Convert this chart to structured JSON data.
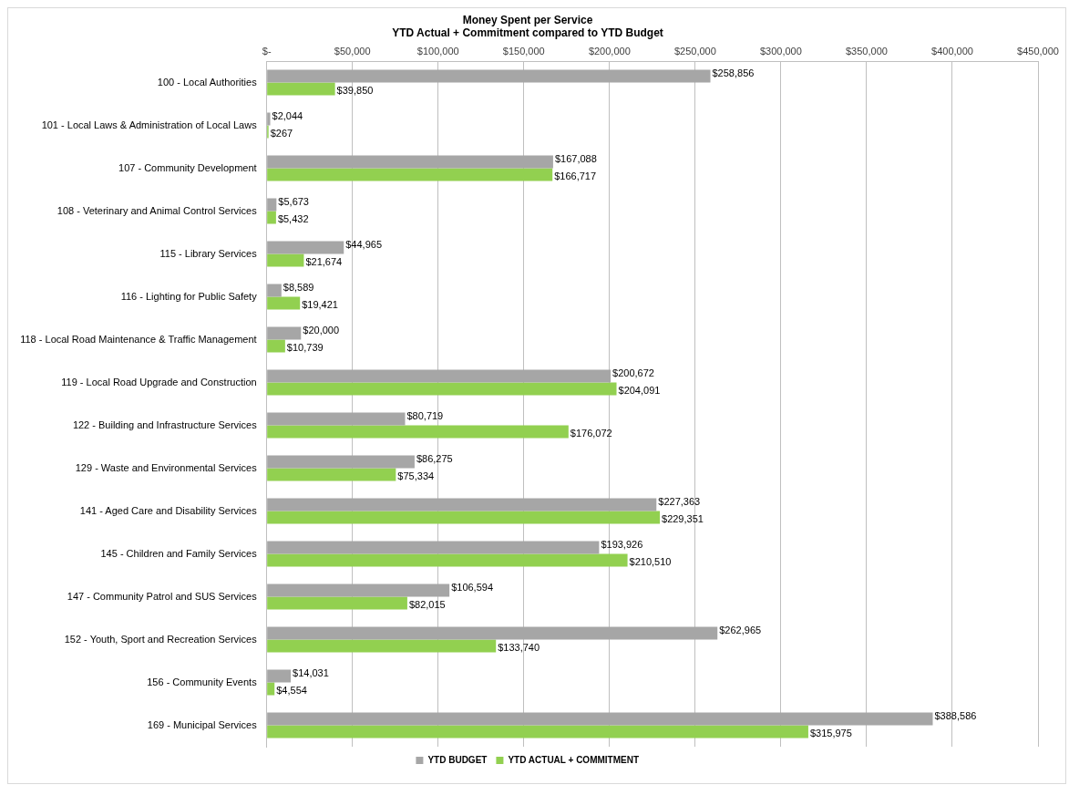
{
  "chart_data": {
    "type": "bar",
    "orientation": "horizontal",
    "title": [
      "Money Spent per Service",
      "YTD Actual + Commitment compared to YTD Budget"
    ],
    "categories": [
      "100 - Local Authorities",
      "101 - Local Laws & Administration of Local Laws",
      "107 - Community Development",
      "108 - Veterinary and Animal Control Services",
      "115 - Library Services",
      "116 - Lighting for Public Safety",
      "118 - Local Road Maintenance & Traffic Management",
      "119 - Local Road Upgrade and Construction",
      "122 - Building and Infrastructure Services",
      "129 - Waste and Environmental Services",
      "141 - Aged Care and Disability Services",
      "145 - Children and Family Services",
      "147 - Community Patrol and SUS Services",
      "152 - Youth, Sport and Recreation Services",
      "156 - Community Events",
      "169 - Municipal Services"
    ],
    "series": [
      {
        "name": "YTD BUDGET",
        "color": "#a6a6a6",
        "values": [
          258856,
          2044,
          167088,
          5673,
          44965,
          8589,
          20000,
          200672,
          80719,
          86275,
          227363,
          193926,
          106594,
          262965,
          14031,
          388586
        ],
        "value_labels": [
          "$258,856",
          "$2,044",
          "$167,088",
          "$5,673",
          "$44,965",
          "$8,589",
          "$20,000",
          "$200,672",
          "$80,719",
          "$86,275",
          "$227,363",
          "$193,926",
          "$106,594",
          "$262,965",
          "$14,031",
          "$388,586"
        ]
      },
      {
        "name": "YTD ACTUAL + COMMITMENT",
        "color": "#92d050",
        "values": [
          39850,
          267,
          166717,
          5432,
          21674,
          19421,
          10739,
          204091,
          176072,
          75334,
          229351,
          210510,
          82015,
          133740,
          4554,
          315975
        ],
        "value_labels": [
          "$39,850",
          "$267",
          "$166,717",
          "$5,432",
          "$21,674",
          "$19,421",
          "$10,739",
          "$204,091",
          "$176,072",
          "$75,334",
          "$229,351",
          "$210,510",
          "$82,015",
          "$133,740",
          "$4,554",
          "$315,975"
        ]
      }
    ],
    "xlim": [
      0,
      450000
    ],
    "xticks": [
      {
        "value": 0,
        "label": "$-"
      },
      {
        "value": 50000,
        "label": "$50,000"
      },
      {
        "value": 100000,
        "label": "$100,000"
      },
      {
        "value": 150000,
        "label": "$150,000"
      },
      {
        "value": 200000,
        "label": "$200,000"
      },
      {
        "value": 250000,
        "label": "$250,000"
      },
      {
        "value": 300000,
        "label": "$300,000"
      },
      {
        "value": 350000,
        "label": "$350,000"
      },
      {
        "value": 400000,
        "label": "$400,000"
      },
      {
        "value": 450000,
        "label": "$450,000"
      }
    ],
    "grid": "x",
    "legend": "bottom"
  }
}
